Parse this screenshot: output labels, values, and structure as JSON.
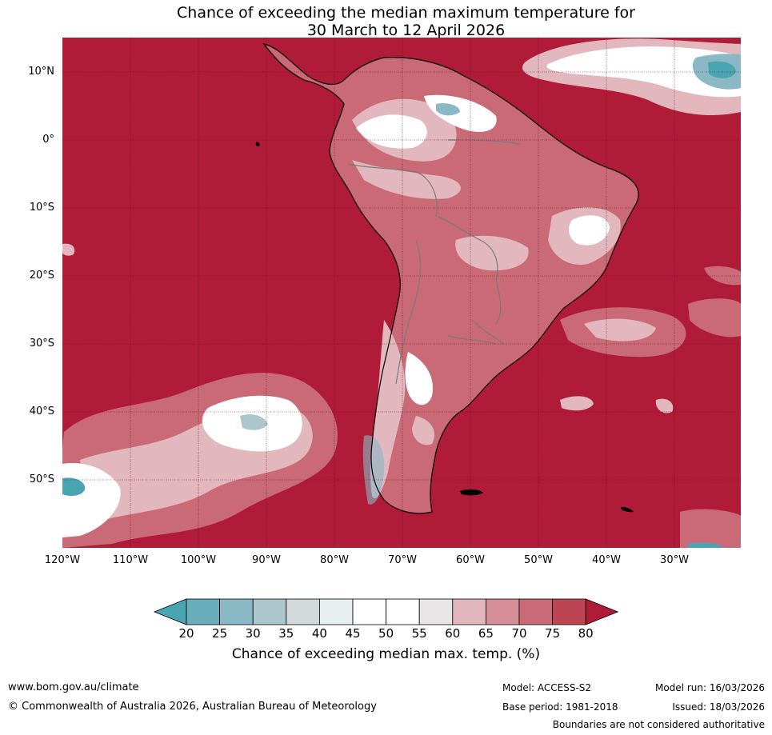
{
  "title_line1": "Chance of exceeding the median maximum temperature for",
  "title_line2": "30 March to 12 April 2026",
  "lat_labels": [
    "10°N",
    "0°",
    "10°S",
    "20°S",
    "30°S",
    "40°S",
    "50°S"
  ],
  "lon_labels": [
    "120°W",
    "110°W",
    "100°W",
    "90°W",
    "80°W",
    "70°W",
    "60°W",
    "50°W",
    "40°W",
    "30°W"
  ],
  "colorbar": {
    "ticks": [
      "20",
      "25",
      "30",
      "35",
      "40",
      "45",
      "50",
      "55",
      "60",
      "65",
      "70",
      "75",
      "80"
    ],
    "colors": [
      "#4aa5b3",
      "#6aadbb",
      "#8ab8c5",
      "#abc6cc",
      "#d3d9db",
      "#e8eff1",
      "#ffffff",
      "#ffffff",
      "#e9e6e8",
      "#e2b7bd",
      "#d58d96",
      "#c96a76",
      "#bd4553",
      "#b01c37"
    ],
    "label": "Chance of exceeding median max. temp. (%)"
  },
  "footer": {
    "website": "www.bom.gov.au/climate",
    "copyright": "© Commonwealth of Australia 2026, Australian Bureau of Meteorology",
    "model": "Model: ACCESS-S2",
    "base_period": "Base period: 1981-2018",
    "model_run": "Model run: 16/03/2026",
    "issued": "Issued: 18/03/2026",
    "disclaimer": "Boundaries are not considered authoritative"
  },
  "map_colors": {
    "ocean_high": "#b01c37",
    "band_75": "#c96a76",
    "band_65": "#e2b7bd",
    "band_55": "#ffffff",
    "band_low": "#8ab8c5",
    "band_lowest": "#4aa5b3"
  }
}
